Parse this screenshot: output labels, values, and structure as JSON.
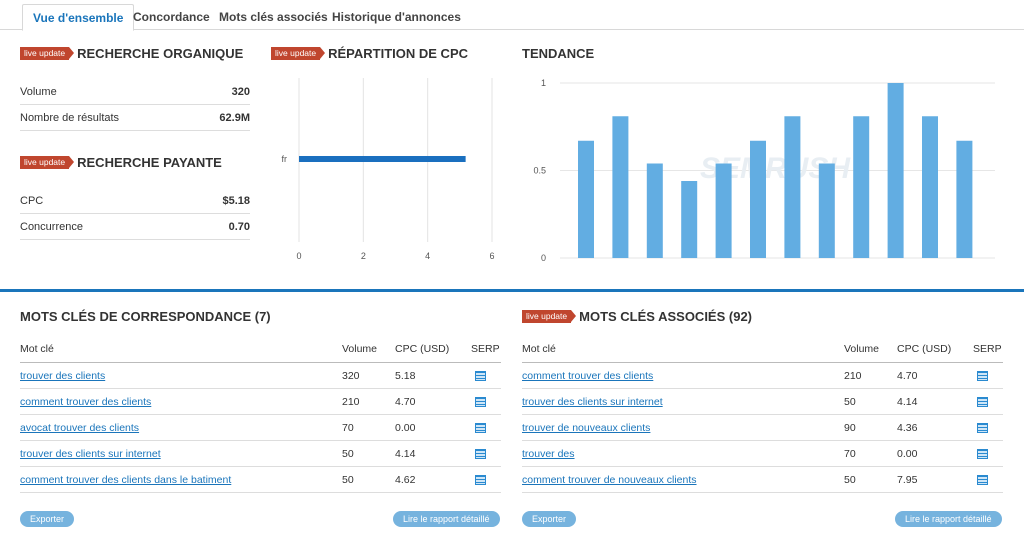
{
  "tabs": [
    "Vue d'ensemble",
    "Concordance",
    "Mots clés associés",
    "Historique d'annonces"
  ],
  "badge": "live update",
  "organic": {
    "title": "RECHERCHE ORGANIQUE",
    "rows": [
      {
        "k": "Volume",
        "v": "320"
      },
      {
        "k": "Nombre de résultats",
        "v": "62.9M"
      }
    ]
  },
  "paid": {
    "title": "RECHERCHE PAYANTE",
    "rows": [
      {
        "k": "CPC",
        "v": "$5.18"
      },
      {
        "k": "Concurrence",
        "v": "0.70"
      }
    ]
  },
  "cpc_chart": {
    "title": "RÉPARTITION DE CPC",
    "chart_data": {
      "type": "bar",
      "orientation": "horizontal",
      "categories": [
        "fr"
      ],
      "values": [
        5.18
      ],
      "xlim": [
        0,
        6
      ],
      "xticks": [
        "0",
        "2",
        "4",
        "6"
      ],
      "color": "#1a6fbf"
    }
  },
  "trend_chart": {
    "title": "TENDANCE",
    "chart_data": {
      "type": "bar",
      "values": [
        0.67,
        0.81,
        0.54,
        0.44,
        0.54,
        0.67,
        0.81,
        0.54,
        0.81,
        1.0,
        0.81,
        0.67
      ],
      "ylim": [
        0,
        1
      ],
      "yticks": [
        "0",
        "0.5",
        "1"
      ],
      "color": "#62ade2"
    }
  },
  "watermark": "SEMRUSH",
  "matching": {
    "title": "MOTS CLÉS DE CORRESPONDANCE (7)",
    "headers": [
      "Mot clé",
      "Volume",
      "CPC (USD)",
      "SERP"
    ],
    "rows": [
      {
        "kw": "trouver des clients",
        "vol": "320",
        "cpc": "5.18"
      },
      {
        "kw": "comment trouver des clients",
        "vol": "210",
        "cpc": "4.70"
      },
      {
        "kw": "avocat trouver des clients",
        "vol": "70",
        "cpc": "0.00"
      },
      {
        "kw": "trouver des clients sur internet",
        "vol": "50",
        "cpc": "4.14"
      },
      {
        "kw": "comment trouver des clients dans le batiment",
        "vol": "50",
        "cpc": "4.62"
      }
    ],
    "export": "Exporter",
    "report": "Lire le rapport détaillé"
  },
  "related": {
    "title": "MOTS CLÉS ASSOCIÉS (92)",
    "headers": [
      "Mot clé",
      "Volume",
      "CPC (USD)",
      "SERP"
    ],
    "rows": [
      {
        "kw": "comment trouver des clients",
        "vol": "210",
        "cpc": "4.70"
      },
      {
        "kw": "trouver des clients sur internet",
        "vol": "50",
        "cpc": "4.14"
      },
      {
        "kw": "trouver de nouveaux clients",
        "vol": "90",
        "cpc": "4.36"
      },
      {
        "kw": "trouver des",
        "vol": "70",
        "cpc": "0.00"
      },
      {
        "kw": "comment trouver de nouveaux clients",
        "vol": "50",
        "cpc": "7.95"
      }
    ],
    "export": "Exporter",
    "report": "Lire le rapport détaillé"
  }
}
